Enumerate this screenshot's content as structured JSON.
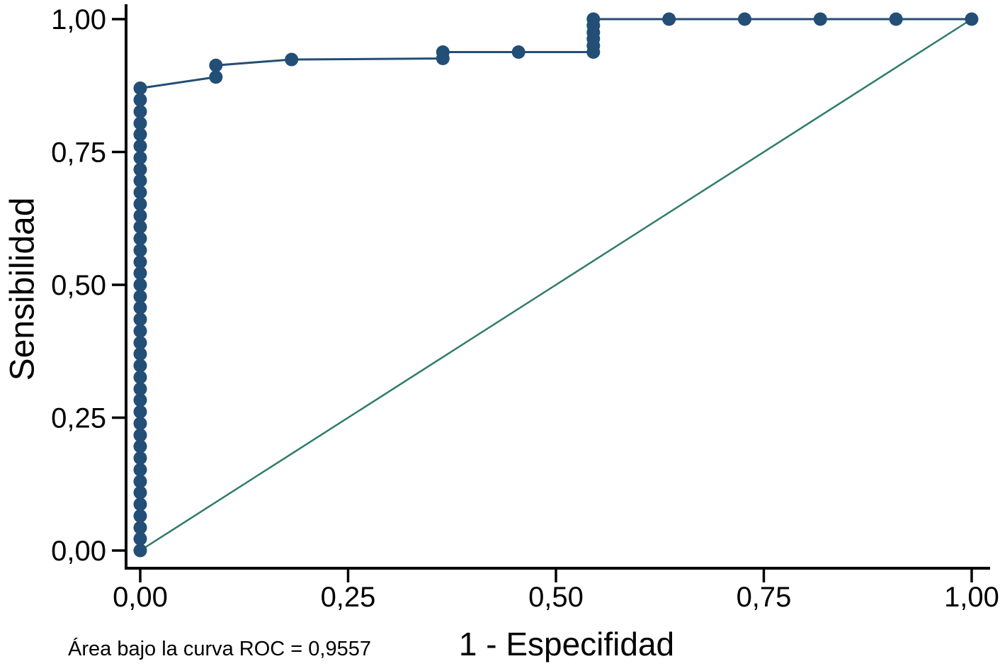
{
  "chart_data": {
    "type": "line",
    "title": "",
    "xlabel": "1 - Especifidad",
    "ylabel": "Sensibilidad",
    "caption": "Área bajo la curva ROC = 0,9557",
    "auc_label": "Área bajo la curva ROC",
    "auc_value": "0,9557",
    "xlim": [
      0,
      1
    ],
    "ylim": [
      0,
      1
    ],
    "grid": false,
    "legend": "none",
    "x_ticks": {
      "values": [
        0,
        0.25,
        0.5,
        0.75,
        1
      ],
      "labels": [
        "0,00",
        "0,25",
        "0,50",
        "0,75",
        "1,00"
      ]
    },
    "y_ticks": {
      "values": [
        0,
        0.25,
        0.5,
        0.75,
        1
      ],
      "labels": [
        "0,00",
        "0,25",
        "0,50",
        "0,75",
        "1,00"
      ]
    },
    "series": [
      {
        "name": "Curva ROC",
        "color": "#234e76",
        "style": "line-with-markers",
        "line_points": [
          [
            0,
            0
          ],
          [
            0,
            0.87
          ],
          [
            0.091,
            0.891
          ],
          [
            0.091,
            0.913
          ],
          [
            0.182,
            0.924
          ],
          [
            0.364,
            0.926
          ],
          [
            0.364,
            0.938
          ],
          [
            0.455,
            0.938
          ],
          [
            0.545,
            0.938
          ],
          [
            0.545,
            1.0
          ],
          [
            0.636,
            1.0
          ],
          [
            0.727,
            1.0
          ],
          [
            0.818,
            1.0
          ],
          [
            0.909,
            1.0
          ],
          [
            1.0,
            1.0
          ]
        ],
        "marker_points": [
          [
            0,
            0.0
          ],
          [
            0,
            0.022
          ],
          [
            0,
            0.043
          ],
          [
            0,
            0.065
          ],
          [
            0,
            0.087
          ],
          [
            0,
            0.109
          ],
          [
            0,
            0.13
          ],
          [
            0,
            0.152
          ],
          [
            0,
            0.174
          ],
          [
            0,
            0.196
          ],
          [
            0,
            0.217
          ],
          [
            0,
            0.239
          ],
          [
            0,
            0.261
          ],
          [
            0,
            0.283
          ],
          [
            0,
            0.304
          ],
          [
            0,
            0.326
          ],
          [
            0,
            0.348
          ],
          [
            0,
            0.37
          ],
          [
            0,
            0.391
          ],
          [
            0,
            0.413
          ],
          [
            0,
            0.435
          ],
          [
            0,
            0.457
          ],
          [
            0,
            0.478
          ],
          [
            0,
            0.5
          ],
          [
            0,
            0.522
          ],
          [
            0,
            0.543
          ],
          [
            0,
            0.565
          ],
          [
            0,
            0.587
          ],
          [
            0,
            0.609
          ],
          [
            0,
            0.63
          ],
          [
            0,
            0.652
          ],
          [
            0,
            0.674
          ],
          [
            0,
            0.696
          ],
          [
            0,
            0.717
          ],
          [
            0,
            0.739
          ],
          [
            0,
            0.761
          ],
          [
            0,
            0.783
          ],
          [
            0,
            0.804
          ],
          [
            0,
            0.826
          ],
          [
            0,
            0.848
          ],
          [
            0,
            0.87
          ],
          [
            0.091,
            0.891
          ],
          [
            0.091,
            0.913
          ],
          [
            0.182,
            0.924
          ],
          [
            0.364,
            0.926
          ],
          [
            0.364,
            0.938
          ],
          [
            0.455,
            0.938
          ],
          [
            0.545,
            0.938
          ],
          [
            0.545,
            0.95
          ],
          [
            0.545,
            0.963
          ],
          [
            0.545,
            0.975
          ],
          [
            0.545,
            0.988
          ],
          [
            0.545,
            1.0
          ],
          [
            0.636,
            1.0
          ],
          [
            0.727,
            1.0
          ],
          [
            0.818,
            1.0
          ],
          [
            0.909,
            1.0
          ],
          [
            1.0,
            1.0
          ]
        ]
      },
      {
        "name": "Línea de referencia",
        "color": "#2e7b69",
        "style": "line",
        "line_points": [
          [
            0,
            0
          ],
          [
            1,
            1
          ]
        ]
      }
    ],
    "axis_color": "#000000"
  }
}
